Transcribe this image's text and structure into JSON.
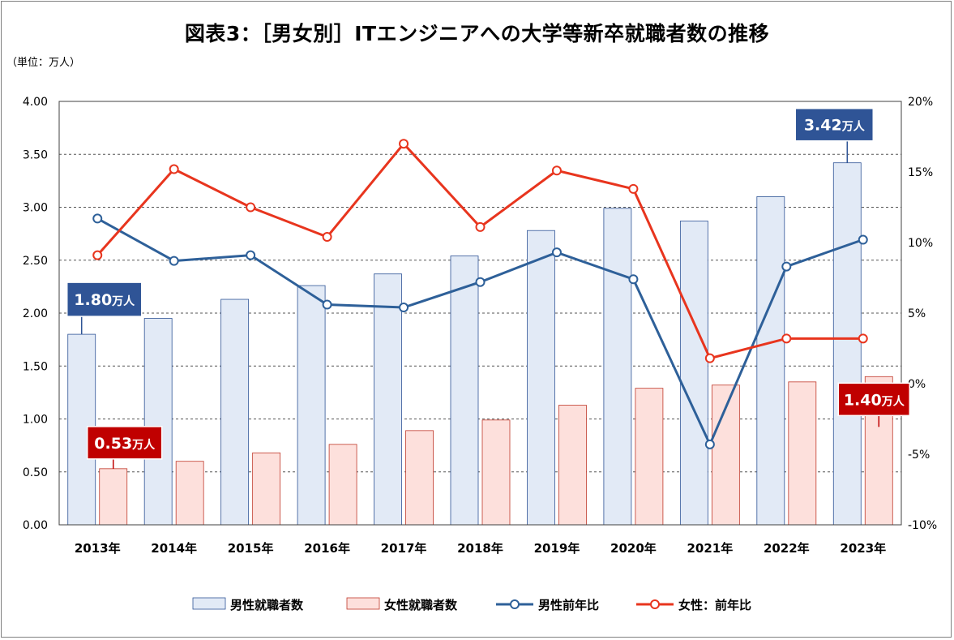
{
  "title": "図表3：［男女別］ITエンジニアへの大学等新卒就職者数の推移",
  "unit_label": "（単位：万人）",
  "chart_data": {
    "type": "bar",
    "categories": [
      "2013年",
      "2014年",
      "2015年",
      "2016年",
      "2017年",
      "2018年",
      "2019年",
      "2020年",
      "2021年",
      "2022年",
      "2023年"
    ],
    "series": [
      {
        "name": "男性就職者数",
        "kind": "bar",
        "axis": "left",
        "color": "#E2EAF6",
        "stroke": "#2F5496",
        "values": [
          1.8,
          1.95,
          2.13,
          2.26,
          2.37,
          2.54,
          2.78,
          2.99,
          2.87,
          3.1,
          3.42
        ]
      },
      {
        "name": "女性就職者数",
        "kind": "bar",
        "axis": "left",
        "color": "#FDE0DC",
        "stroke": "#C0392B",
        "values": [
          0.53,
          0.6,
          0.68,
          0.76,
          0.89,
          0.99,
          1.13,
          1.29,
          1.32,
          1.35,
          1.4
        ]
      },
      {
        "name": "男性前年比",
        "kind": "line",
        "axis": "right",
        "color": "#2E6099",
        "values": [
          11.7,
          8.7,
          9.1,
          5.6,
          5.4,
          7.2,
          9.3,
          7.4,
          -4.3,
          8.3,
          10.2
        ]
      },
      {
        "name": "女性：前年比",
        "kind": "line",
        "axis": "right",
        "color": "#E8351E",
        "values": [
          9.1,
          15.2,
          12.5,
          10.4,
          17.0,
          11.1,
          15.1,
          13.8,
          1.8,
          3.2,
          3.2
        ]
      }
    ],
    "y_left": {
      "min": 0,
      "max": 4,
      "ticks": [
        "0.00",
        "0.50",
        "1.00",
        "1.50",
        "2.00",
        "2.50",
        "3.00",
        "3.50",
        "4.00"
      ]
    },
    "y_right": {
      "min": -10,
      "max": 20,
      "ticks": [
        "-10%",
        "-5%",
        "0%",
        "5%",
        "10%",
        "15%",
        "20%"
      ]
    },
    "grid": true,
    "legend_position": "bottom",
    "callouts": [
      {
        "label": "1.80",
        "unit": "万人",
        "series": 0,
        "index": 0,
        "color": "#2F5496"
      },
      {
        "label": "0.53",
        "unit": "万人",
        "series": 1,
        "index": 0,
        "color": "#C00000"
      },
      {
        "label": "3.42",
        "unit": "万人",
        "series": 0,
        "index": 10,
        "color": "#2F5496"
      },
      {
        "label": "1.40",
        "unit": "万人",
        "series": 1,
        "index": 10,
        "color": "#C00000"
      }
    ]
  }
}
